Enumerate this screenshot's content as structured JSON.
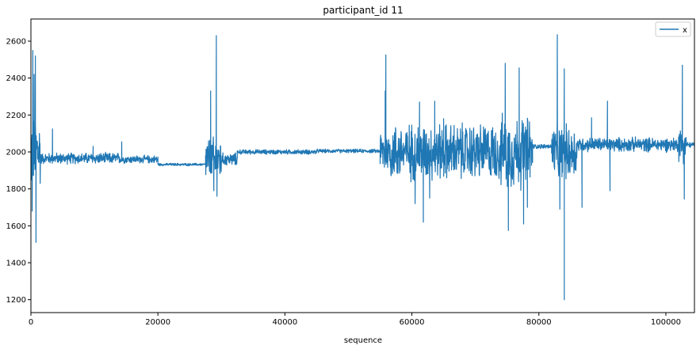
{
  "chart_data": {
    "type": "line",
    "title": "participant_id 11",
    "xlabel": "sequence",
    "ylabel": "",
    "xlim": [
      0,
      104500
    ],
    "ylim": [
      1130,
      2720
    ],
    "xticks": [
      0,
      20000,
      40000,
      60000,
      80000,
      100000
    ],
    "xtick_labels": [
      "0",
      "20000",
      "40000",
      "60000",
      "80000",
      "100000"
    ],
    "yticks": [
      1200,
      1400,
      1600,
      1800,
      2000,
      2200,
      2400,
      2600
    ],
    "ytick_labels": [
      "1200",
      "1400",
      "1600",
      "1800",
      "2000",
      "2200",
      "2400",
      "2600"
    ],
    "grid": false,
    "legend": {
      "position": "top-right",
      "entries": [
        "x"
      ]
    },
    "series": [
      {
        "name": "x",
        "color": "#1f77b4",
        "segments": [
          {
            "x": [
              0,
              1500
            ],
            "mean": 2000,
            "amp": 250,
            "spikes": [
              [
                300,
                2550
              ],
              [
                700,
                2520
              ],
              [
                800,
                1510
              ],
              [
                200,
                1680
              ],
              [
                500,
                2420
              ]
            ]
          },
          {
            "x": [
              1500,
              14000
            ],
            "mean": 1965,
            "amp": 35,
            "spikes": [
              [
                3400,
                2125
              ],
              [
                9800,
                2030
              ]
            ]
          },
          {
            "x": [
              14000,
              20000
            ],
            "mean": 1960,
            "amp": 25,
            "spikes": [
              [
                14300,
                2055
              ]
            ]
          },
          {
            "x": [
              20000,
              27500
            ],
            "mean": 1932,
            "amp": 8,
            "spikes": []
          },
          {
            "x": [
              27500,
              30000
            ],
            "mean": 1960,
            "amp": 140,
            "spikes": [
              [
                28300,
                2330
              ],
              [
                29200,
                2630
              ],
              [
                28800,
                1790
              ],
              [
                29300,
                1760
              ]
            ]
          },
          {
            "x": [
              30000,
              32500
            ],
            "mean": 1960,
            "amp": 40,
            "spikes": []
          },
          {
            "x": [
              32500,
              45000
            ],
            "mean": 2000,
            "amp": 15,
            "spikes": []
          },
          {
            "x": [
              45000,
              55000
            ],
            "mean": 2005,
            "amp": 12,
            "spikes": []
          },
          {
            "x": [
              55000,
              56500
            ],
            "mean": 2000,
            "amp": 140,
            "spikes": [
              [
                55900,
                2525
              ],
              [
                55800,
                2330
              ]
            ]
          },
          {
            "x": [
              56500,
              74000
            ],
            "mean": 2000,
            "amp": 180,
            "spikes": [
              [
                61200,
                2270
              ],
              [
                63600,
                2275
              ],
              [
                65000,
                2180
              ],
              [
                61800,
                1620
              ],
              [
                60500,
                1720
              ],
              [
                62800,
                1750
              ]
            ]
          },
          {
            "x": [
              74000,
              79000
            ],
            "mean": 2000,
            "amp": 230,
            "spikes": [
              [
                74700,
                2480
              ],
              [
                76900,
                2455
              ],
              [
                75200,
                1575
              ],
              [
                77600,
                1610
              ],
              [
                78200,
                1700
              ]
            ]
          },
          {
            "x": [
              79000,
              82000
            ],
            "mean": 2030,
            "amp": 15,
            "spikes": []
          },
          {
            "x": [
              82000,
              86000
            ],
            "mean": 2000,
            "amp": 170,
            "spikes": [
              [
                82900,
                2635
              ],
              [
                84000,
                2450
              ],
              [
                84000,
                1200
              ],
              [
                83300,
                1690
              ],
              [
                86800,
                1700
              ]
            ]
          },
          {
            "x": [
              86000,
              102000
            ],
            "mean": 2040,
            "amp": 45,
            "spikes": [
              [
                90800,
                2275
              ],
              [
                88300,
                2185
              ],
              [
                91200,
                1790
              ],
              [
                86800,
                1700
              ]
            ]
          },
          {
            "x": [
              102000,
              103200
            ],
            "mean": 2040,
            "amp": 110,
            "spikes": [
              [
                102600,
                2470
              ],
              [
                102900,
                1745
              ]
            ]
          },
          {
            "x": [
              103200,
              104500
            ],
            "mean": 2038,
            "amp": 18,
            "spikes": []
          }
        ]
      }
    ]
  }
}
